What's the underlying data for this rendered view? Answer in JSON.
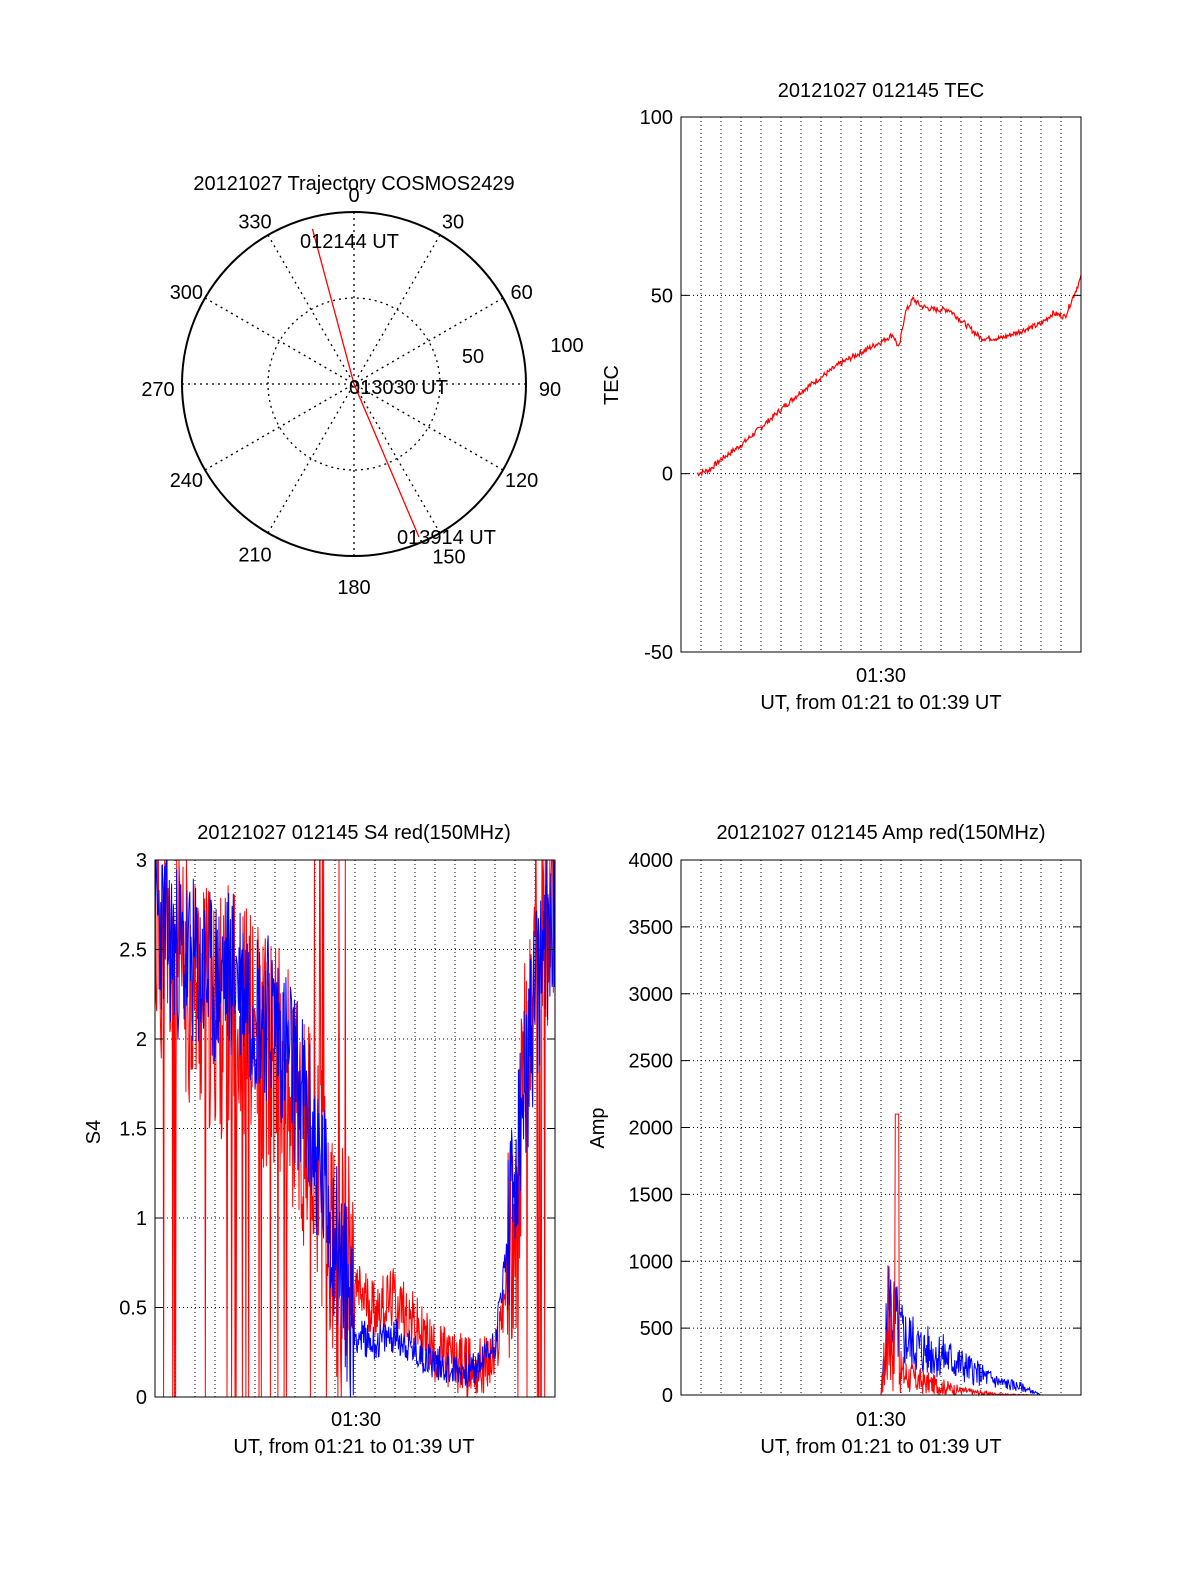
{
  "colors": {
    "red": "#ff0000",
    "blue": "#0000ff",
    "axis": "#000000",
    "grid": "#000000"
  },
  "chart_data": [
    {
      "type": "polar",
      "title": "20121027 Trajectory COSMOS2429",
      "azimuth_labels": [
        "0",
        "30",
        "60",
        "90",
        "120",
        "150",
        "180",
        "210",
        "240",
        "270",
        "300",
        "330"
      ],
      "radial_labels": [
        "50",
        "100"
      ],
      "series": [
        {
          "color": "#ff0000",
          "points": [
            [
              -15,
              84
            ],
            [
              180,
              0
            ],
            [
              157,
              87
            ]
          ]
        }
      ],
      "annotations": [
        "012144 UT",
        "013030 UT",
        "013914 UT"
      ]
    },
    {
      "type": "line",
      "title": "20121027 012145 TEC",
      "xlabel": "UT, from 01:21 to 01:39 UT",
      "ylabel": "TEC",
      "xtick_labels": [
        "01:30"
      ],
      "ytick_labels": [
        "-50",
        "0",
        "50",
        "100"
      ],
      "ylim": [
        -50,
        100
      ],
      "grid": true,
      "series": [
        {
          "color": "#ff0000",
          "x": [
            0.04,
            0.07,
            0.1,
            0.15,
            0.2,
            0.25,
            0.3,
            0.35,
            0.4,
            0.45,
            0.5,
            0.53,
            0.545,
            0.56,
            0.58,
            0.6,
            0.63,
            0.67,
            0.7,
            0.75,
            0.8,
            0.85,
            0.9,
            0.93,
            0.96,
            1.0
          ],
          "y": [
            0,
            1,
            4,
            8,
            13,
            18,
            23,
            27,
            31,
            34,
            37,
            39,
            35,
            45,
            49,
            47,
            46,
            46,
            43,
            38,
            38,
            40,
            42,
            45,
            44,
            55
          ]
        }
      ]
    },
    {
      "type": "line",
      "title": "20121027 012145 S4 red(150MHz)",
      "xlabel": "UT, from 01:21 to 01:39 UT",
      "ylabel": "S4",
      "xtick_labels": [
        "01:30"
      ],
      "ytick_labels": [
        "0",
        "0.5",
        "1",
        "1.5",
        "2",
        "2.5",
        "3"
      ],
      "ylim": [
        0,
        3
      ],
      "grid": true,
      "series": [
        {
          "color": "#ff0000",
          "x": [
            0.0,
            0.05,
            0.1,
            0.15,
            0.2,
            0.25,
            0.3,
            0.35,
            0.4,
            0.45,
            0.5,
            0.55,
            0.6,
            0.65,
            0.7,
            0.75,
            0.8,
            0.85,
            0.9,
            0.95,
            1.0
          ],
          "y": [
            2.6,
            2.4,
            2.3,
            2.1,
            2.2,
            2.0,
            1.9,
            1.6,
            1.3,
            0.8,
            0.6,
            0.5,
            0.55,
            0.4,
            0.25,
            0.2,
            0.15,
            0.2,
            1.0,
            2.5,
            2.8
          ]
        },
        {
          "color": "#0000ff",
          "x": [
            0.0,
            0.05,
            0.1,
            0.15,
            0.2,
            0.25,
            0.3,
            0.35,
            0.4,
            0.45,
            0.5,
            0.55,
            0.6,
            0.65,
            0.7,
            0.75,
            0.8,
            0.85,
            0.9,
            0.95,
            1.0
          ],
          "y": [
            2.7,
            2.5,
            2.4,
            2.3,
            2.4,
            2.2,
            2.1,
            1.8,
            1.4,
            0.9,
            0.35,
            0.3,
            0.35,
            0.25,
            0.2,
            0.15,
            0.15,
            0.3,
            1.2,
            2.2,
            2.8
          ]
        }
      ]
    },
    {
      "type": "line",
      "title": "20121027 012145 Amp red(150MHz)",
      "xlabel": "UT, from 01:21 to 01:39 UT",
      "ylabel": "Amp",
      "xtick_labels": [
        "01:30"
      ],
      "ytick_labels": [
        "0",
        "500",
        "1000",
        "1500",
        "2000",
        "2500",
        "3000",
        "3500",
        "4000"
      ],
      "ylim": [
        0,
        4000
      ],
      "grid": true,
      "series": [
        {
          "color": "#0000ff",
          "x": [
            0.0,
            0.1,
            0.2,
            0.3,
            0.4,
            0.5,
            0.52,
            0.55,
            0.6,
            0.65,
            0.7,
            0.75,
            0.8,
            0.85,
            0.9,
            1.0
          ],
          "y": [
            0,
            0,
            0,
            0,
            0,
            0,
            900,
            600,
            450,
            400,
            300,
            200,
            120,
            80,
            0,
            0
          ]
        },
        {
          "color": "#ff0000",
          "x": [
            0.0,
            0.1,
            0.2,
            0.3,
            0.4,
            0.5,
            0.52,
            0.55,
            0.6,
            0.65,
            0.7,
            0.75,
            0.8,
            0.85,
            0.9,
            1.0
          ],
          "y": [
            0,
            0,
            0,
            0,
            0,
            0,
            1100,
            300,
            180,
            120,
            60,
            30,
            10,
            5,
            0,
            0
          ]
        }
      ]
    }
  ]
}
